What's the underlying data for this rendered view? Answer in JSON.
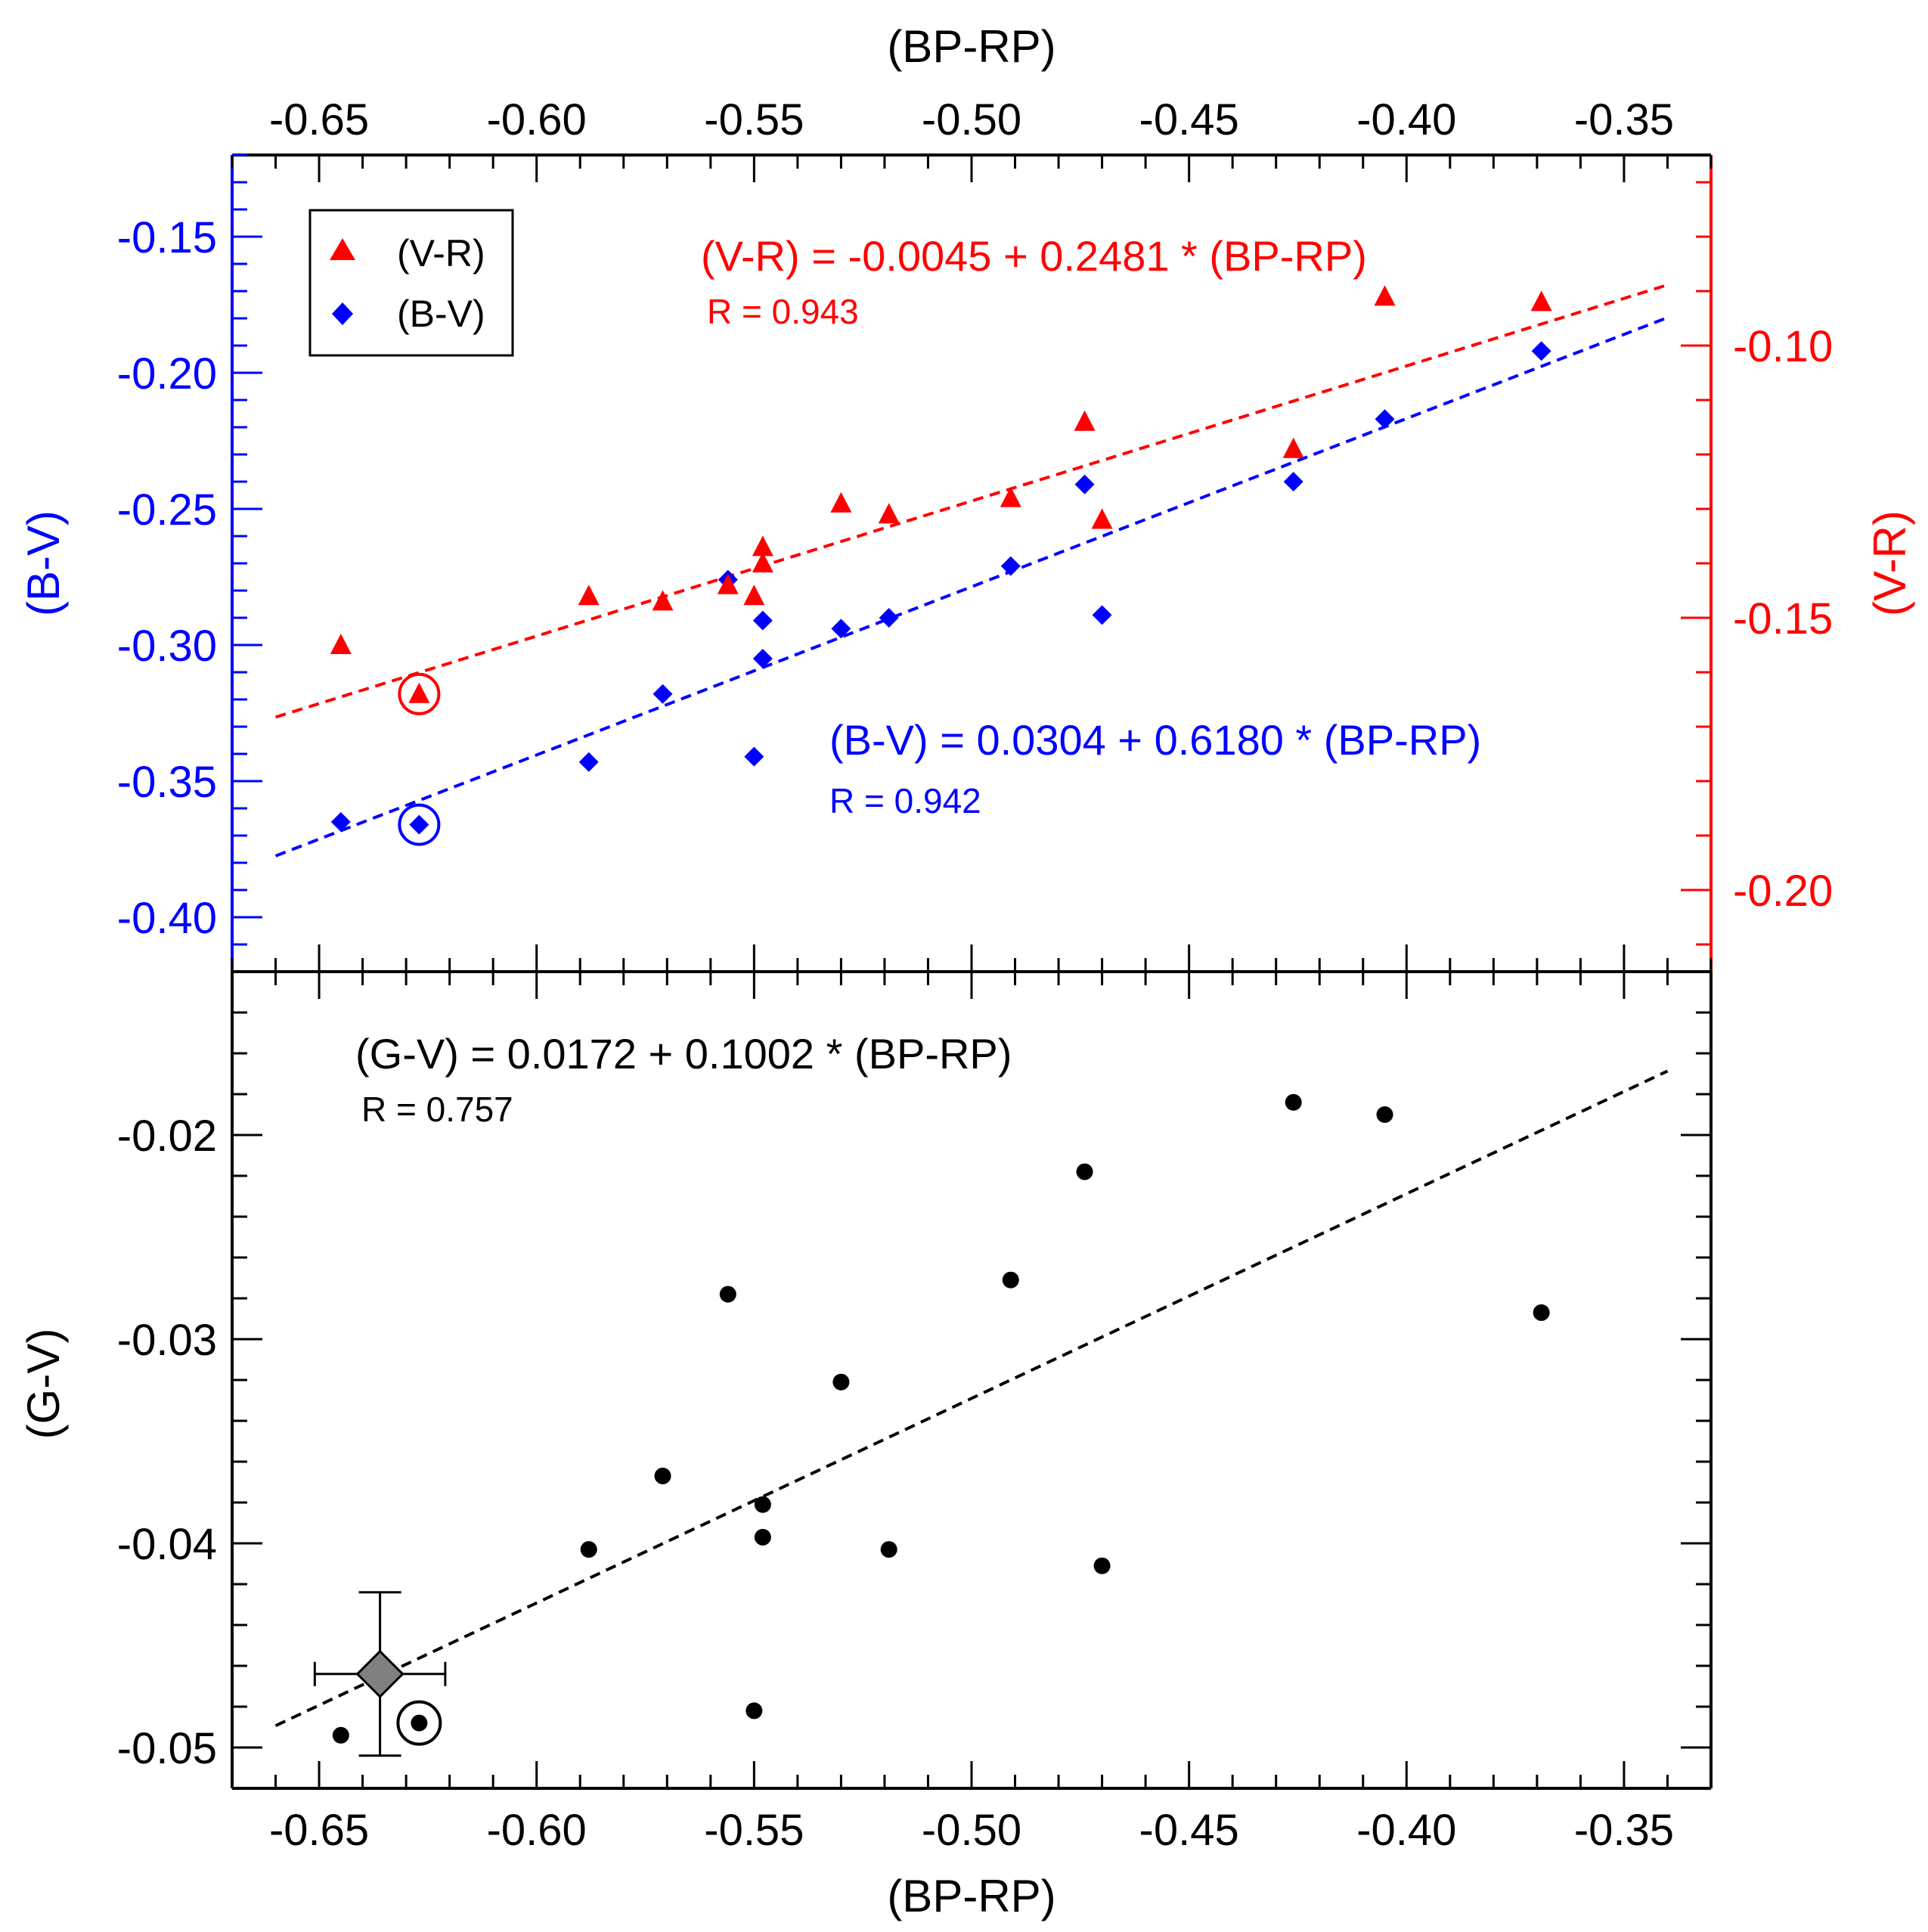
{
  "chart_data": [
    {
      "type": "scatter",
      "title": "",
      "xlabel_top": "(BP-RP)",
      "ylabel_left": "(B-V)",
      "ylabel_right": "(V-R)",
      "x_range": [
        -0.67,
        -0.33
      ],
      "y_left_range": [
        -0.42,
        -0.12
      ],
      "y_right_range": [
        -0.215,
        -0.065
      ],
      "x_ticks": [
        "-0.65",
        "-0.60",
        "-0.55",
        "-0.50",
        "-0.45",
        "-0.40",
        "-0.35"
      ],
      "x_tick_values": [
        -0.65,
        -0.6,
        -0.55,
        -0.5,
        -0.45,
        -0.4,
        -0.35
      ],
      "y_left_ticks": [
        "-0.15",
        "-0.20",
        "-0.25",
        "-0.30",
        "-0.35",
        "-0.40"
      ],
      "y_left_tick_values": [
        -0.15,
        -0.2,
        -0.25,
        -0.3,
        -0.35,
        -0.4
      ],
      "y_right_ticks": [
        "-0.10",
        "-0.15",
        "-0.20"
      ],
      "y_right_tick_values": [
        -0.1,
        -0.15,
        -0.2
      ],
      "legend": {
        "position": "top-left",
        "entries": [
          {
            "label": "(V-R)",
            "marker": "triangle",
            "color": "#ff0000"
          },
          {
            "label": "(B-V)",
            "marker": "diamond",
            "color": "#0000ff"
          }
        ]
      },
      "series": [
        {
          "name": "(B-V)",
          "axis": "left",
          "color": "#0000ff",
          "marker": "diamond",
          "x": [
            -0.645,
            -0.627,
            -0.588,
            -0.571,
            -0.556,
            -0.548,
            -0.548,
            -0.55,
            -0.53,
            -0.519,
            -0.491,
            -0.474,
            -0.47,
            -0.426,
            -0.405,
            -0.369
          ],
          "y": [
            -0.365,
            -0.366,
            -0.343,
            -0.318,
            -0.276,
            -0.291,
            -0.305,
            -0.341,
            -0.294,
            -0.29,
            -0.271,
            -0.241,
            -0.289,
            -0.24,
            -0.217,
            -0.192
          ],
          "fit": {
            "intercept": 0.0304,
            "slope": 0.618,
            "x_range": [
              -0.66,
              -0.34
            ]
          },
          "equation": "(B-V) = 0.0304 + 0.6180 * (BP-RP)",
          "r_label": "R = 0.942"
        },
        {
          "name": "(V-R)",
          "axis": "right",
          "color": "#ff0000",
          "marker": "triangle",
          "x": [
            -0.645,
            -0.627,
            -0.588,
            -0.571,
            -0.556,
            -0.548,
            -0.548,
            -0.55,
            -0.53,
            -0.519,
            -0.491,
            -0.474,
            -0.47,
            -0.426,
            -0.405,
            -0.369
          ],
          "y": [
            -0.155,
            -0.164,
            -0.146,
            -0.147,
            -0.144,
            -0.137,
            -0.14,
            -0.146,
            -0.129,
            -0.131,
            -0.128,
            -0.114,
            -0.132,
            -0.119,
            -0.091,
            -0.092
          ],
          "fit": {
            "intercept": -0.0045,
            "slope": 0.2481,
            "x_range": [
              -0.66,
              -0.34
            ]
          },
          "equation": "(V-R) = -0.0045 + 0.2481 * (BP-RP)",
          "r_label": "R = 0.943"
        }
      ],
      "annotations": [
        {
          "type": "sun-circle",
          "series": "(V-R)",
          "x": -0.627,
          "y": -0.164
        },
        {
          "type": "sun-circle",
          "series": "(B-V)",
          "x": -0.627,
          "y": -0.366
        }
      ]
    },
    {
      "type": "scatter",
      "title": "",
      "xlabel": "(BP-RP)",
      "ylabel": "(G-V)",
      "x_range": [
        -0.67,
        -0.33
      ],
      "y_range": [
        -0.052,
        -0.012
      ],
      "x_ticks": [
        "-0.65",
        "-0.60",
        "-0.55",
        "-0.50",
        "-0.45",
        "-0.40",
        "-0.35"
      ],
      "x_tick_values": [
        -0.65,
        -0.6,
        -0.55,
        -0.5,
        -0.45,
        -0.4,
        -0.35
      ],
      "y_ticks": [
        "-0.02",
        "-0.03",
        "-0.04",
        "-0.05"
      ],
      "y_tick_values": [
        -0.02,
        -0.03,
        -0.04,
        -0.05
      ],
      "series": [
        {
          "name": "(G-V)",
          "color": "#000000",
          "marker": "circle",
          "x": [
            -0.645,
            -0.627,
            -0.588,
            -0.571,
            -0.556,
            -0.548,
            -0.548,
            -0.55,
            -0.53,
            -0.519,
            -0.491,
            -0.474,
            -0.47,
            -0.426,
            -0.405,
            -0.369
          ],
          "y": [
            -0.0494,
            -0.0488,
            -0.0403,
            -0.0367,
            -0.0278,
            -0.0381,
            -0.0397,
            -0.0482,
            -0.0321,
            -0.0403,
            -0.0271,
            -0.0218,
            -0.0411,
            -0.0184,
            -0.019,
            -0.0287
          ],
          "fit": {
            "intercept": 0.0172,
            "slope": 0.1002,
            "x_range": [
              -0.66,
              -0.34
            ]
          },
          "equation": "(G-V) = 0.0172 + 0.1002 * (BP-RP)",
          "r_label": "R = 0.757"
        }
      ],
      "extra_point": {
        "marker": "diamond",
        "color": "#808080",
        "x": -0.636,
        "y": -0.0464,
        "x_err": 0.015,
        "y_err": 0.004
      },
      "annotations": [
        {
          "type": "sun-circle",
          "series": "(G-V)",
          "x": -0.627,
          "y": -0.0488
        }
      ]
    }
  ]
}
